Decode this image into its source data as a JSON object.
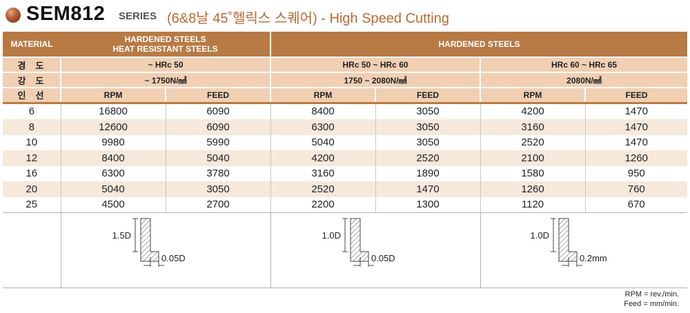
{
  "header": {
    "model": "SEM812",
    "series": "SERIES",
    "subtitle": "(6&8날 45˚헬릭스 스퀘어) - High Speed Cutting"
  },
  "table": {
    "material_label": "MATERIAL",
    "group1": {
      "line1": "HARDENED STEELS",
      "line2": "HEAT RESISTANT STEELS",
      "hardness": "~ HRc 50",
      "strength": "~ 1750N/㎟"
    },
    "group2": {
      "title": "HARDENED STEELS",
      "hardness_a": "HRc 50 ~ HRc 60",
      "strength_a": "1750 ~ 2080N/㎟",
      "hardness_b": "HRc 60 ~ HRc 65",
      "strength_b": "2080N/㎟"
    },
    "row_labels": {
      "hardness": "경도",
      "strength": "강도",
      "flutes": "인선"
    },
    "col_rpm": "RPM",
    "col_feed": "FEED",
    "rows": [
      {
        "d": "6",
        "v": [
          "16800",
          "6090",
          "8400",
          "3050",
          "4200",
          "1470"
        ]
      },
      {
        "d": "8",
        "v": [
          "12600",
          "6090",
          "6300",
          "3050",
          "3160",
          "1470"
        ]
      },
      {
        "d": "10",
        "v": [
          "9980",
          "5990",
          "5040",
          "3050",
          "2520",
          "1470"
        ]
      },
      {
        "d": "12",
        "v": [
          "8400",
          "5040",
          "4200",
          "2520",
          "2100",
          "1260"
        ]
      },
      {
        "d": "16",
        "v": [
          "6300",
          "3780",
          "3160",
          "1890",
          "1580",
          "950"
        ]
      },
      {
        "d": "20",
        "v": [
          "5040",
          "3050",
          "2520",
          "1470",
          "1260",
          "760"
        ]
      },
      {
        "d": "25",
        "v": [
          "4500",
          "2700",
          "2200",
          "1300",
          "1120",
          "670"
        ]
      }
    ],
    "diagrams": [
      {
        "depth": "1.5D",
        "width": "0.05D"
      },
      {
        "depth": "1.0D",
        "width": "0.05D"
      },
      {
        "depth": "1.0D",
        "width": "0.2mm"
      }
    ]
  },
  "units": {
    "rpm": "RPM = rev./min.",
    "feed": "Feed = mm/min."
  }
}
